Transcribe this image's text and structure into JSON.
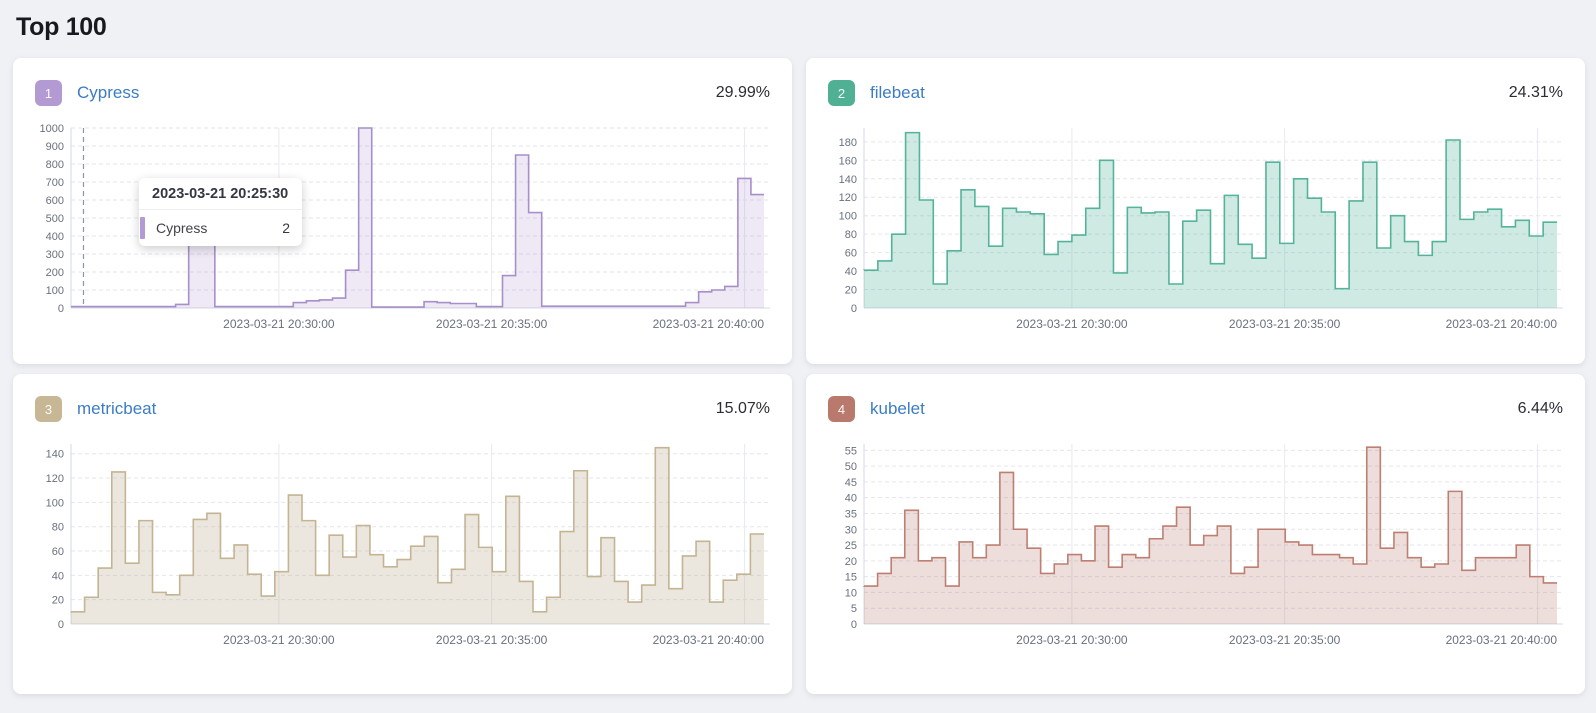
{
  "page": {
    "title": "Top 100",
    "background": "#f0f1f5",
    "link_color": "#3c7cc4"
  },
  "tooltip": {
    "title": "2023-03-21 20:25:30",
    "series": "Cypress",
    "value": "2",
    "marker_color": "#b49ad3"
  },
  "cards": [
    {
      "rank": "1",
      "name": "Cypress",
      "percent": "29.99%",
      "badge_color": "#b49ad3",
      "stroke": "#a78fc9",
      "fill": "rgba(151,117,193,0.16)",
      "chart_data": {
        "type": "area",
        "x_labels": [
          "2023-03-21 20:30:00",
          "2023-03-21 20:35:00",
          "2023-03-21 20:40:00"
        ],
        "y_ticks": [
          0,
          100,
          200,
          300,
          400,
          500,
          600,
          700,
          800,
          900,
          1000
        ],
        "y_max": 1000,
        "cursor_at": 0.018,
        "values": [
          8,
          8,
          8,
          8,
          8,
          8,
          8,
          8,
          20,
          520,
          520,
          8,
          8,
          8,
          8,
          8,
          8,
          30,
          40,
          45,
          55,
          210,
          1000,
          5,
          5,
          5,
          5,
          35,
          30,
          25,
          25,
          8,
          8,
          180,
          850,
          530,
          10,
          10,
          10,
          10,
          10,
          10,
          10,
          10,
          10,
          10,
          10,
          30,
          90,
          100,
          120,
          720,
          630
        ]
      }
    },
    {
      "rank": "2",
      "name": "filebeat",
      "percent": "24.31%",
      "badge_color": "#50b093",
      "stroke": "#54b399",
      "fill": "rgba(84,179,153,0.28)",
      "chart_data": {
        "type": "area",
        "x_labels": [
          "2023-03-21 20:30:00",
          "2023-03-21 20:35:00",
          "2023-03-21 20:40:00"
        ],
        "y_ticks": [
          0,
          20,
          40,
          60,
          80,
          100,
          120,
          140,
          160,
          180
        ],
        "y_max": 195,
        "values": [
          41,
          51,
          80,
          190,
          117,
          26,
          62,
          128,
          110,
          67,
          108,
          104,
          102,
          58,
          72,
          79,
          108,
          160,
          38,
          109,
          103,
          104,
          26,
          94,
          106,
          48,
          122,
          69,
          54,
          158,
          70,
          140,
          119,
          104,
          21,
          116,
          158,
          65,
          100,
          72,
          57,
          72,
          182,
          96,
          104,
          107,
          88,
          95,
          78,
          93
        ]
      }
    },
    {
      "rank": "3",
      "name": "metricbeat",
      "percent": "15.07%",
      "badge_color": "#c7b795",
      "stroke": "#c3b493",
      "fill": "rgba(185,168,136,0.28)",
      "chart_data": {
        "type": "area",
        "x_labels": [
          "2023-03-21 20:30:00",
          "2023-03-21 20:35:00",
          "2023-03-21 20:40:00"
        ],
        "y_ticks": [
          0,
          20,
          40,
          60,
          80,
          100,
          120,
          140
        ],
        "y_max": 148,
        "values": [
          10,
          22,
          46,
          125,
          50,
          85,
          26,
          24,
          40,
          86,
          91,
          54,
          65,
          41,
          23,
          43,
          106,
          85,
          40,
          73,
          55,
          81,
          57,
          47,
          53,
          64,
          72,
          34,
          45,
          90,
          63,
          43,
          105,
          35,
          10,
          22,
          76,
          126,
          39,
          71,
          35,
          18,
          32,
          145,
          29,
          56,
          68,
          18,
          36,
          41,
          74
        ]
      }
    },
    {
      "rank": "4",
      "name": "kubelet",
      "percent": "6.44%",
      "badge_color": "#b9796c",
      "stroke": "#bd7f72",
      "fill": "rgba(170,101,86,0.21)",
      "chart_data": {
        "type": "area",
        "x_labels": [
          "2023-03-21 20:30:00",
          "2023-03-21 20:35:00",
          "2023-03-21 20:40:00"
        ],
        "y_ticks": [
          0,
          5,
          10,
          15,
          20,
          25,
          30,
          35,
          40,
          45,
          50,
          55
        ],
        "y_max": 57,
        "values": [
          12,
          16,
          21,
          36,
          20,
          21,
          12,
          26,
          21,
          25,
          48,
          30,
          24,
          16,
          19,
          22,
          20,
          31,
          18,
          22,
          21,
          27,
          31,
          37,
          25,
          28,
          31,
          16,
          18,
          30,
          30,
          26,
          25,
          22,
          22,
          21,
          19,
          56,
          24,
          29,
          21,
          18,
          19,
          42,
          17,
          21,
          21,
          21,
          25,
          15,
          13
        ]
      }
    }
  ]
}
